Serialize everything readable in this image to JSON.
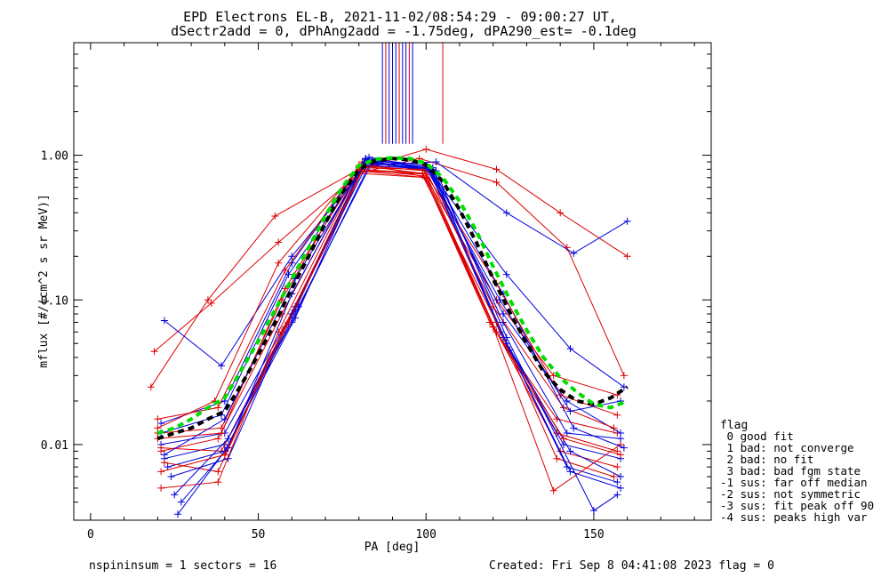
{
  "title_line1": "EPD Electrons EL-B, 2021-11-02/08:54:29 - 09:00:27 UT,",
  "title_line2": "dSectr2add = 0, dPhAng2add = -1.75deg, dPA290_est=  -0.1deg",
  "footer": {
    "left": "nspininsum =  1  sectors = 16",
    "right": "Created: Fri Sep  8 04:41:08 2023   flag = 0"
  },
  "legend": {
    "title": "flag",
    "items": [
      " 0 good fit",
      " 1 bad: not converge",
      " 2 bad: no fit",
      " 3 bad: bad fgm state",
      "-1 sus: far off median",
      "-2 sus: not symmetric",
      "-3 sus: fit peak off 90",
      "-4 sus: peaks high var"
    ]
  },
  "colors": {
    "red": "#dd0000",
    "blue": "#0000dd",
    "black": "#000000",
    "green": "#00dd00"
  },
  "chart_data": {
    "type": "line",
    "xlabel": "PA [deg]",
    "ylabel": "mflux [#/(cm^2 s sr MeV)]",
    "xlim": [
      -5,
      185
    ],
    "ylim": [
      0.003,
      6
    ],
    "yscale": "log",
    "xticks": [
      0,
      50,
      100,
      150
    ],
    "xtick_labels": [
      "0",
      "50",
      "100",
      "150"
    ],
    "yticks": [
      0.01,
      0.1,
      1.0
    ],
    "ytick_labels": [
      "0.01",
      "0.10",
      "1.00"
    ],
    "peak_marker_lines": {
      "red": [
        88,
        92,
        95,
        105
      ],
      "blue": [
        87,
        89,
        90,
        91,
        93,
        94,
        96
      ],
      "y_range": [
        1.2,
        6
      ]
    },
    "series": [
      {
        "color": "red",
        "x": [
          18,
          35,
          55,
          80,
          100,
          121,
          140,
          160
        ],
        "y": [
          0.025,
          0.1,
          0.38,
          0.8,
          1.1,
          0.8,
          0.4,
          0.2
        ]
      },
      {
        "color": "red",
        "x": [
          19,
          36,
          56,
          80,
          98,
          121,
          142,
          159
        ],
        "y": [
          0.044,
          0.095,
          0.25,
          0.75,
          0.95,
          0.65,
          0.23,
          0.03
        ]
      },
      {
        "color": "blue",
        "x": [
          22,
          39,
          60,
          82,
          103,
          124,
          144,
          160
        ],
        "y": [
          0.072,
          0.035,
          0.2,
          0.85,
          0.9,
          0.4,
          0.21,
          0.35
        ]
      },
      {
        "color": "blue",
        "x": [
          21,
          40,
          60,
          82,
          100,
          124,
          143,
          159
        ],
        "y": [
          0.014,
          0.02,
          0.18,
          0.95,
          0.85,
          0.15,
          0.046,
          0.025
        ]
      },
      {
        "color": "red",
        "x": [
          20,
          38,
          58,
          81,
          100,
          121,
          138,
          157
        ],
        "y": [
          0.015,
          0.018,
          0.16,
          0.9,
          0.7,
          0.1,
          0.03,
          0.022
        ]
      },
      {
        "color": "red",
        "x": [
          20,
          39,
          57,
          80,
          99,
          119,
          139,
          157
        ],
        "y": [
          0.012,
          0.013,
          0.1,
          0.85,
          0.75,
          0.07,
          0.015,
          0.012
        ]
      },
      {
        "color": "blue",
        "x": [
          21,
          40,
          61,
          82,
          101,
          123,
          142,
          158
        ],
        "y": [
          0.01,
          0.012,
          0.09,
          0.9,
          0.8,
          0.08,
          0.02,
          0.012
        ]
      },
      {
        "color": "red",
        "x": [
          21,
          38,
          57,
          80,
          99,
          120,
          139,
          157
        ],
        "y": [
          0.009,
          0.011,
          0.08,
          0.8,
          0.75,
          0.065,
          0.012,
          0.009
        ]
      },
      {
        "color": "blue",
        "x": [
          22,
          40,
          60,
          83,
          102,
          122,
          141,
          158
        ],
        "y": [
          0.008,
          0.01,
          0.07,
          0.85,
          0.8,
          0.06,
          0.01,
          0.008
        ]
      },
      {
        "color": "red",
        "x": [
          21,
          39,
          58,
          80,
          100,
          121,
          140,
          157
        ],
        "y": [
          0.0095,
          0.009,
          0.065,
          0.75,
          0.7,
          0.06,
          0.009,
          0.007
        ]
      },
      {
        "color": "blue",
        "x": [
          23,
          40,
          61,
          82,
          101,
          123,
          143,
          158
        ],
        "y": [
          0.007,
          0.009,
          0.075,
          0.9,
          0.78,
          0.055,
          0.009,
          0.006
        ]
      },
      {
        "color": "red",
        "x": [
          22,
          38,
          57,
          81,
          99,
          121,
          139,
          156
        ],
        "y": [
          0.0075,
          0.0065,
          0.06,
          0.8,
          0.72,
          0.07,
          0.008,
          0.006
        ]
      },
      {
        "color": "blue",
        "x": [
          24,
          41,
          60,
          83,
          102,
          124,
          142,
          157
        ],
        "y": [
          0.006,
          0.008,
          0.08,
          0.92,
          0.76,
          0.05,
          0.007,
          0.0055
        ]
      },
      {
        "color": "red",
        "x": [
          21,
          38,
          56,
          80,
          100,
          120,
          138,
          158
        ],
        "y": [
          0.005,
          0.0055,
          0.06,
          0.78,
          0.7,
          0.065,
          0.0048,
          0.01
        ]
      },
      {
        "color": "blue",
        "x": [
          25,
          41,
          61,
          82,
          101,
          125,
          143,
          158
        ],
        "y": [
          0.0045,
          0.011,
          0.085,
          0.95,
          0.8,
          0.045,
          0.0065,
          0.005
        ]
      },
      {
        "color": "blue",
        "x": [
          26,
          40,
          62,
          84,
          103,
          124,
          150,
          157
        ],
        "y": [
          0.0033,
          0.009,
          0.09,
          0.9,
          0.78,
          0.055,
          0.0035,
          0.0045
        ]
      },
      {
        "color": "blue",
        "x": [
          27,
          41,
          60,
          82,
          102,
          123,
          142,
          158
        ],
        "y": [
          0.004,
          0.0095,
          0.11,
          0.93,
          0.82,
          0.07,
          0.012,
          0.011
        ]
      },
      {
        "color": "red",
        "x": [
          20,
          39,
          58,
          81,
          100,
          120,
          141,
          156
        ],
        "y": [
          0.011,
          0.012,
          0.12,
          0.85,
          0.78,
          0.09,
          0.018,
          0.013
        ]
      },
      {
        "color": "blue",
        "x": [
          22,
          40,
          61,
          83,
          101,
          123,
          144,
          159
        ],
        "y": [
          0.0085,
          0.015,
          0.14,
          0.97,
          0.8,
          0.11,
          0.013,
          0.0095
        ]
      },
      {
        "color": "red",
        "x": [
          20,
          37,
          56,
          80,
          99,
          121,
          140,
          157
        ],
        "y": [
          0.013,
          0.02,
          0.18,
          0.82,
          0.8,
          0.13,
          0.022,
          0.016
        ]
      },
      {
        "color": "blue",
        "x": [
          21,
          39,
          59,
          82,
          100,
          122,
          143,
          158
        ],
        "y": [
          0.012,
          0.016,
          0.15,
          0.88,
          0.82,
          0.1,
          0.017,
          0.02
        ]
      },
      {
        "color": "red",
        "x": [
          21,
          40,
          59,
          81,
          100,
          121,
          141,
          158
        ],
        "y": [
          0.0065,
          0.0085,
          0.07,
          0.78,
          0.74,
          0.06,
          0.011,
          0.0085
        ]
      },
      {
        "color": "black",
        "style": "dashed",
        "x": [
          20,
          25,
          30,
          35,
          40,
          45,
          50,
          55,
          60,
          65,
          70,
          75,
          80,
          85,
          90,
          95,
          100,
          105,
          110,
          115,
          120,
          125,
          130,
          135,
          140,
          145,
          150,
          155,
          160
        ],
        "y": [
          0.011,
          0.012,
          0.013,
          0.015,
          0.017,
          0.026,
          0.042,
          0.07,
          0.12,
          0.2,
          0.34,
          0.55,
          0.8,
          0.92,
          0.95,
          0.93,
          0.86,
          0.66,
          0.42,
          0.25,
          0.14,
          0.082,
          0.05,
          0.032,
          0.024,
          0.02,
          0.019,
          0.021,
          0.025
        ]
      },
      {
        "color": "green",
        "style": "dashed",
        "x": [
          20,
          25,
          30,
          35,
          40,
          45,
          50,
          55,
          60,
          65,
          70,
          75,
          80,
          85,
          90,
          95,
          100,
          105,
          110,
          115,
          120,
          125,
          130,
          135,
          140,
          145,
          150,
          155,
          160
        ],
        "y": [
          0.012,
          0.013,
          0.015,
          0.018,
          0.021,
          0.033,
          0.052,
          0.085,
          0.14,
          0.23,
          0.38,
          0.6,
          0.85,
          0.94,
          0.96,
          0.95,
          0.88,
          0.7,
          0.48,
          0.3,
          0.17,
          0.1,
          0.062,
          0.04,
          0.029,
          0.023,
          0.019,
          0.018,
          0.02
        ]
      }
    ]
  }
}
